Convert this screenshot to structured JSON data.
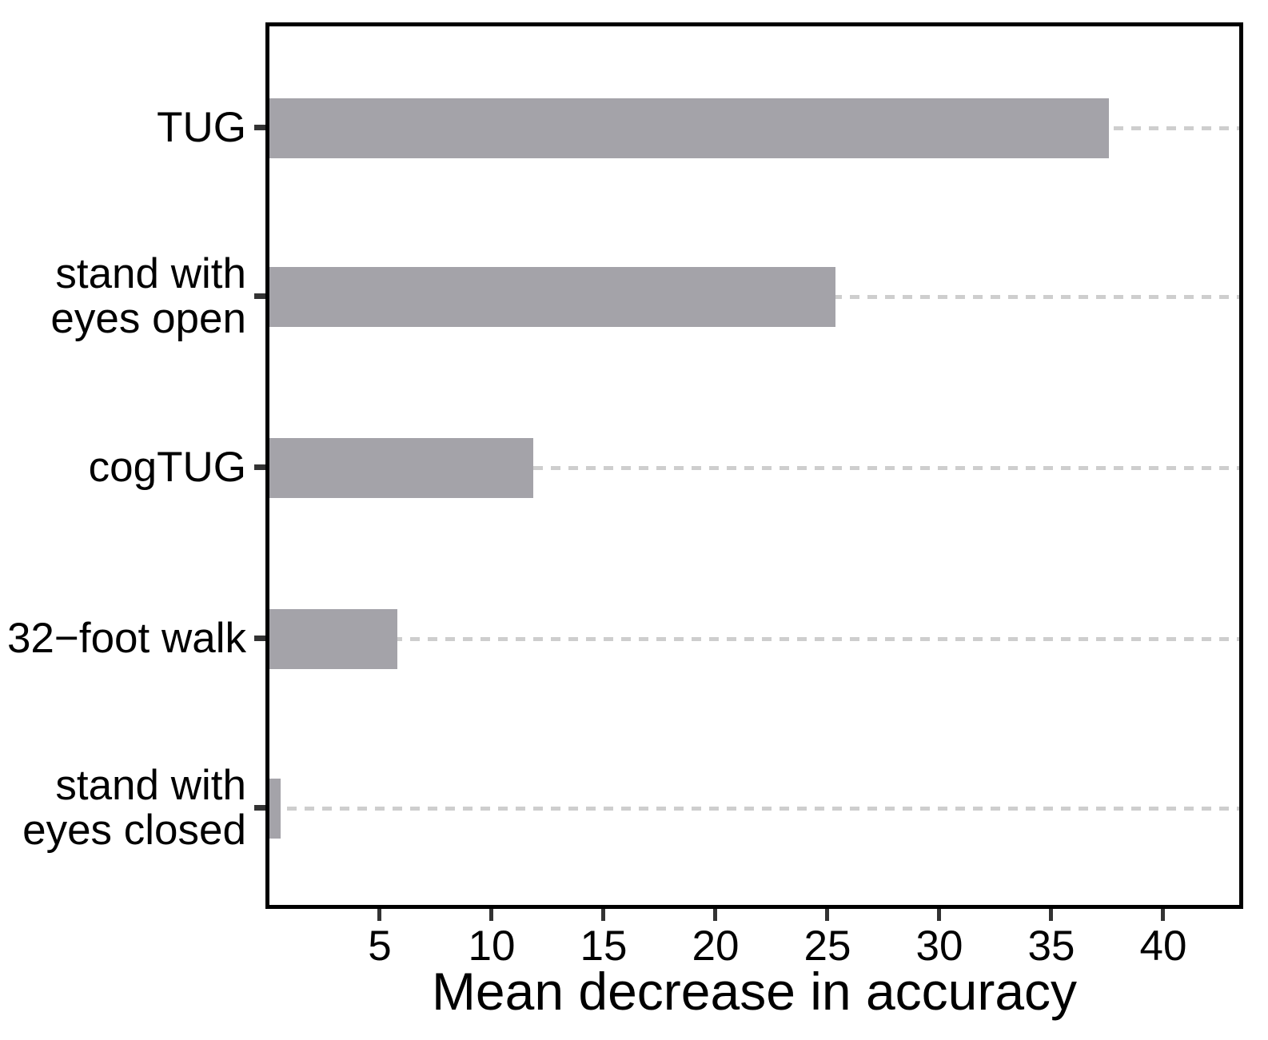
{
  "chart_data": {
    "type": "bar",
    "orientation": "horizontal",
    "title": "",
    "xlabel": "Mean decrease in accuracy",
    "ylabel": "",
    "categories": [
      "TUG",
      "stand with\neyes open",
      "cogTUG",
      "32−foot walk",
      "stand with\neyes closed"
    ],
    "category_slugs": [
      "tug",
      "stand-with-eyes-open",
      "cogtug",
      "32-foot-walk",
      "stand-with-eyes-closed"
    ],
    "values": [
      37.5,
      25.3,
      11.8,
      5.7,
      0.5
    ],
    "xlim": [
      0,
      43.5
    ],
    "xticks": [
      5,
      10,
      15,
      20,
      25,
      30,
      35,
      40
    ],
    "grid": "horizontal dashed line at each category, full panel width",
    "legend": "none",
    "colors": {
      "bar": "#a4a3a9",
      "grid_line": "#cecece",
      "tick_mark": "#333333",
      "panel_border": "#000000",
      "text": "#000000",
      "background": "#ffffff"
    }
  }
}
